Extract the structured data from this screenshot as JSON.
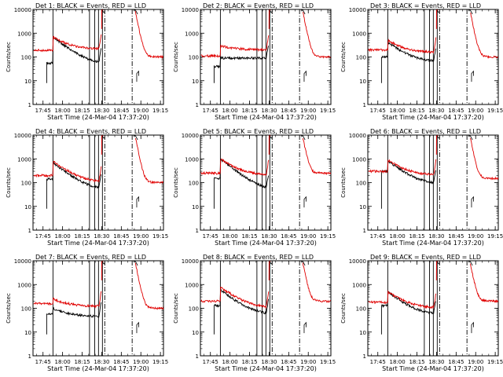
{
  "figure": {
    "ylabel": "Counts/sec",
    "xlabel": "Start Time (24-Mar-04 17:37:20)"
  },
  "colors": {
    "events": "#000000",
    "lld": "#e00000",
    "axes": "#000000",
    "background": "#ffffff"
  },
  "chart_data": [
    {
      "type": "line",
      "title": "Det 1: BLACK = Events, RED = LLD",
      "events_peak": 700,
      "lld_peak": 700,
      "lld_base": 190,
      "events_base": 55,
      "lld_tail": 210,
      "events_tail": 45,
      "lld_right": 100,
      "xlabel": "Start Time (24-Mar-04 17:37:20)",
      "ylabel": "Counts/sec",
      "yscale": "log",
      "ylim": [
        1,
        10000
      ],
      "x_tick_labels": [
        "17:45",
        "18:00",
        "18:15",
        "18:30",
        "18:45",
        "19:00",
        "19:15"
      ],
      "y_tick_labels": [
        "1",
        "10",
        "100",
        "1000",
        "10000"
      ]
    },
    {
      "type": "line",
      "title": "Det 2: BLACK = Events, RED = LLD",
      "events_peak": 90,
      "lld_peak": 300,
      "lld_base": 110,
      "events_base": 40,
      "lld_tail": 200,
      "events_tail": 90,
      "lld_right": 100,
      "xlabel": "Start Time (24-Mar-04 17:37:20)",
      "ylabel": "Counts/sec",
      "yscale": "log",
      "ylim": [
        1,
        10000
      ],
      "x_tick_labels": [
        "17:45",
        "18:00",
        "18:15",
        "18:30",
        "18:45",
        "19:00",
        "19:15"
      ],
      "y_tick_labels": [
        "1",
        "10",
        "100",
        "1000",
        "10000"
      ]
    },
    {
      "type": "line",
      "title": "Det 3: BLACK = Events, RED = LLD",
      "events_peak": 420,
      "lld_peak": 500,
      "lld_base": 200,
      "events_base": 100,
      "lld_tail": 150,
      "events_tail": 60,
      "lld_right": 100,
      "xlabel": "Start Time (24-Mar-04 17:37:20)",
      "ylabel": "Counts/sec",
      "yscale": "log",
      "ylim": [
        1,
        10000
      ],
      "x_tick_labels": [
        "17:45",
        "18:00",
        "18:15",
        "18:30",
        "18:45",
        "19:00",
        "19:15"
      ],
      "y_tick_labels": [
        "1",
        "10",
        "100",
        "1000",
        "10000"
      ]
    },
    {
      "type": "line",
      "title": "Det 4: BLACK = Events, RED = LLD",
      "events_peak": 700,
      "lld_peak": 800,
      "lld_base": 200,
      "events_base": 140,
      "lld_tail": 100,
      "events_tail": 45,
      "lld_right": 100,
      "xlabel": "Start Time (24-Mar-04 17:37:20)",
      "ylabel": "Counts/sec",
      "yscale": "log",
      "ylim": [
        1,
        10000
      ],
      "x_tick_labels": [
        "17:45",
        "18:00",
        "18:15",
        "18:30",
        "18:45",
        "19:00",
        "19:15"
      ],
      "y_tick_labels": [
        "1",
        "10",
        "100",
        "1000",
        "10000"
      ]
    },
    {
      "type": "line",
      "title": "Det 5: BLACK = Events, RED = LLD",
      "events_peak": 1000,
      "lld_peak": 1000,
      "lld_base": 250,
      "events_base": 150,
      "lld_tail": 200,
      "events_tail": 40,
      "lld_right": 250,
      "xlabel": "Start Time (24-Mar-04 17:37:20)",
      "ylabel": "Counts/sec",
      "yscale": "log",
      "ylim": [
        1,
        10000
      ],
      "x_tick_labels": [
        "17:45",
        "18:00",
        "18:15",
        "18:30",
        "18:45",
        "19:00",
        "19:15"
      ],
      "y_tick_labels": [
        "1",
        "10",
        "100",
        "1000",
        "10000"
      ]
    },
    {
      "type": "line",
      "title": "Det 6: BLACK = Events, RED = LLD",
      "events_peak": 850,
      "lld_peak": 900,
      "lld_base": 300,
      "events_base": 300,
      "lld_tail": 200,
      "events_tail": 80,
      "lld_right": 150,
      "xlabel": "Start Time (24-Mar-04 17:37:20)",
      "ylabel": "Counts/sec",
      "yscale": "log",
      "ylim": [
        1,
        10000
      ],
      "x_tick_labels": [
        "17:45",
        "18:00",
        "18:15",
        "18:30",
        "18:45",
        "19:00",
        "19:15"
      ],
      "y_tick_labels": [
        "1",
        "10",
        "100",
        "1000",
        "10000"
      ]
    },
    {
      "type": "line",
      "title": "Det 7: BLACK = Events, RED = LLD",
      "events_peak": 100,
      "lld_peak": 250,
      "lld_base": 160,
      "events_base": 60,
      "lld_tail": 120,
      "events_tail": 45,
      "lld_right": 100,
      "xlabel": "Start Time (24-Mar-04 17:37:20)",
      "ylabel": "Counts/sec",
      "yscale": "log",
      "ylim": [
        1,
        10000
      ],
      "x_tick_labels": [
        "17:45",
        "18:00",
        "18:15",
        "18:30",
        "18:45",
        "19:00",
        "19:15"
      ],
      "y_tick_labels": [
        "1",
        "10",
        "100",
        "1000",
        "10000"
      ]
    },
    {
      "type": "line",
      "title": "Det 8: BLACK = Events, RED = LLD",
      "events_peak": 600,
      "lld_peak": 800,
      "lld_base": 200,
      "events_base": 130,
      "lld_tail": 100,
      "events_tail": 50,
      "lld_right": 200,
      "xlabel": "Start Time (24-Mar-04 17:37:20)",
      "ylabel": "Counts/sec",
      "yscale": "log",
      "ylim": [
        1,
        10000
      ],
      "x_tick_labels": [
        "17:45",
        "18:00",
        "18:15",
        "18:30",
        "18:45",
        "19:00",
        "19:15"
      ],
      "y_tick_labels": [
        "1",
        "10",
        "100",
        "1000",
        "10000"
      ]
    },
    {
      "type": "line",
      "title": "Det 9: BLACK = Events, RED = LLD",
      "events_peak": 500,
      "lld_peak": 500,
      "lld_base": 180,
      "events_base": 130,
      "lld_tail": 100,
      "events_tail": 50,
      "lld_right": 200,
      "xlabel": "Start Time (24-Mar-04 17:37:20)",
      "ylabel": "Counts/sec",
      "yscale": "log",
      "ylim": [
        1,
        10000
      ],
      "x_tick_labels": [
        "17:45",
        "18:00",
        "18:15",
        "18:30",
        "18:45",
        "19:00",
        "19:15"
      ],
      "y_tick_labels": [
        "1",
        "10",
        "100",
        "1000",
        "10000"
      ]
    }
  ]
}
